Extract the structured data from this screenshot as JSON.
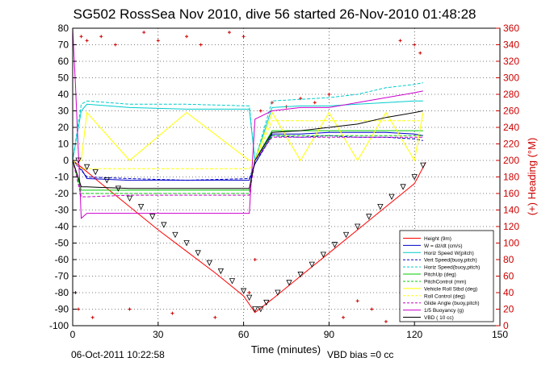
{
  "chart_data": {
    "type": "line",
    "title": "SG502 RossSea Nov 2010, dive 56 started 26-Nov-2010 01:48:28",
    "xlabel": "Time (minutes)",
    "ylabel_right": "(+) Heading (°M)",
    "xlim": [
      0,
      150
    ],
    "ylim": [
      -100,
      80
    ],
    "ylim_right": [
      0,
      360
    ],
    "xticks": [
      "0",
      "30",
      "60",
      "90",
      "120",
      "150"
    ],
    "yticks": [
      "-100",
      "-90",
      "-80",
      "-70",
      "-60",
      "-50",
      "-40",
      "-30",
      "-20",
      "-10",
      "0",
      "10",
      "20",
      "30",
      "40",
      "50",
      "60",
      "70",
      "80"
    ],
    "yticks_right": [
      "0",
      "20",
      "40",
      "60",
      "80",
      "100",
      "120",
      "140",
      "160",
      "180",
      "200",
      "220",
      "240",
      "260",
      "280",
      "300",
      "320",
      "340",
      "360"
    ],
    "grid": true,
    "legend_position": "bottom-right",
    "series": [
      {
        "name": "Height (9m)",
        "color": "#ff0000",
        "style": "solid",
        "x": [
          0,
          3,
          10,
          20,
          30,
          40,
          50,
          60,
          64,
          70,
          80,
          90,
          100,
          110,
          120,
          124
        ],
        "y": [
          0,
          -4,
          -14,
          -28,
          -42,
          -55,
          -68,
          -82,
          -92,
          -84,
          -70,
          -56,
          -42,
          -28,
          -14,
          -1
        ]
      },
      {
        "name": "W = dz/dt (cm/s)",
        "color": "#0000cc",
        "style": "solid",
        "x": [
          0,
          3,
          5,
          20,
          40,
          62,
          64,
          70,
          80,
          90,
          100,
          110,
          120,
          123
        ],
        "y": [
          0,
          -5,
          -11,
          -12,
          -12,
          -12,
          -2,
          16,
          16,
          17,
          17,
          17,
          16,
          15
        ]
      },
      {
        "name": "Horiz Speed W(pitch)",
        "color": "#00cccc",
        "style": "solid",
        "x": [
          0,
          3,
          5,
          20,
          40,
          62,
          64,
          70,
          80,
          90,
          100,
          110,
          120,
          123
        ],
        "y": [
          0,
          30,
          34,
          32,
          31,
          31,
          0,
          32,
          33,
          33,
          34,
          35,
          36,
          36
        ]
      },
      {
        "name": "Vert Speed(buoy,pitch)",
        "color": "#0000cc",
        "style": "dashed",
        "x": [
          0,
          3,
          5,
          20,
          40,
          62,
          64,
          70,
          80,
          90,
          100,
          110,
          120,
          123
        ],
        "y": [
          0,
          -6,
          -10,
          -11,
          -12,
          -11,
          -2,
          15,
          14,
          15,
          14,
          14,
          13,
          12
        ]
      },
      {
        "name": "Horiz Speed(buoy,pitch)",
        "color": "#00cccc",
        "style": "dashed",
        "x": [
          0,
          3,
          5,
          20,
          40,
          62,
          64,
          70,
          80,
          90,
          100,
          110,
          120,
          123
        ],
        "y": [
          0,
          34,
          36,
          34,
          34,
          33,
          0,
          36,
          37,
          38,
          40,
          44,
          46,
          47
        ]
      },
      {
        "name": "PitchUp (deg)",
        "color": "#00cc00",
        "style": "solid",
        "x": [
          0,
          3,
          5,
          20,
          40,
          62,
          64,
          70,
          80,
          90,
          100,
          110,
          120,
          123
        ],
        "y": [
          0,
          -18,
          -18,
          -18,
          -18,
          -18,
          0,
          18,
          18,
          18,
          18,
          18,
          18,
          18
        ]
      },
      {
        "name": "PitchControl (mm)",
        "color": "#00cc00",
        "style": "dashed",
        "x": [
          0,
          3,
          5,
          20,
          40,
          62,
          64,
          70,
          80,
          90,
          100,
          110,
          120,
          123
        ],
        "y": [
          0,
          -20,
          -20,
          -20,
          -20,
          -20,
          0,
          15,
          15,
          15,
          15,
          15,
          15,
          15
        ]
      },
      {
        "name": "Vehicle Roll Stbd (deg)",
        "color": "#ffff00",
        "style": "solid",
        "x": [
          0,
          3,
          5,
          20,
          40,
          62,
          64,
          70,
          80,
          90,
          100,
          110,
          120,
          123
        ],
        "y": [
          0,
          0,
          29,
          0,
          29,
          0,
          0,
          29,
          0,
          29,
          0,
          29,
          0,
          29
        ]
      },
      {
        "name": "Roll Control (deg)",
        "color": "#ffff00",
        "style": "dashed",
        "x": [
          0,
          3,
          5,
          20,
          40,
          62,
          64,
          70,
          80,
          90,
          100,
          110,
          120,
          123
        ],
        "y": [
          0,
          -5,
          -5,
          -5,
          -5,
          -5,
          0,
          24,
          24,
          24,
          24,
          24,
          24,
          24
        ]
      },
      {
        "name": "Glide Angle (buoy,pitch)",
        "color": "#cc00cc",
        "style": "dashed",
        "x": [
          0,
          3,
          5,
          20,
          40,
          62,
          64,
          70,
          80,
          90,
          100,
          110,
          120,
          123
        ],
        "y": [
          0,
          -22,
          -22,
          -21,
          -21,
          -21,
          0,
          14,
          14,
          14,
          14,
          14,
          14,
          14
        ]
      },
      {
        "name": "1/5 Buoyancy (g)",
        "color": "#cc00cc",
        "style": "solid",
        "x": [
          0,
          1,
          3,
          5,
          20,
          40,
          62,
          64,
          70,
          80,
          90,
          100,
          110,
          120,
          123
        ],
        "y": [
          80,
          45,
          -35,
          -32,
          -32,
          -32,
          -32,
          25,
          30,
          32,
          32,
          35,
          38,
          41,
          42
        ]
      },
      {
        "name": "VBD ( 10 cc)",
        "color": "#000000",
        "style": "solid",
        "x": [
          0,
          3,
          5,
          20,
          40,
          62,
          64,
          70,
          80,
          90,
          100,
          110,
          120,
          123
        ],
        "y": [
          0,
          -16,
          -16,
          -17,
          -17,
          -17,
          0,
          17,
          18,
          20,
          22,
          26,
          29,
          30
        ]
      }
    ],
    "depth_markers": {
      "color": "#000000",
      "x": [
        2,
        5,
        8,
        12,
        16,
        20,
        24,
        28,
        32,
        36,
        40,
        44,
        48,
        52,
        56,
        60,
        62,
        64,
        66,
        68,
        72,
        76,
        80,
        84,
        88,
        92,
        96,
        100,
        104,
        108,
        112,
        116,
        120,
        123
      ],
      "y": [
        0,
        -4,
        -7,
        -12,
        -17,
        -23,
        -28,
        -34,
        -39,
        -45,
        -50,
        -56,
        -62,
        -67,
        -73,
        -79,
        -83,
        -90,
        -90,
        -86,
        -80,
        -74,
        -69,
        -63,
        -57,
        -51,
        -45,
        -40,
        -34,
        -28,
        -22,
        -16,
        -10,
        -3
      ]
    },
    "heading_points": {
      "color": "#cc0000",
      "axis": "right",
      "x": [
        1,
        2,
        3,
        5,
        7,
        10,
        15,
        20,
        25,
        30,
        35,
        40,
        45,
        50,
        55,
        60,
        62,
        64,
        66,
        70,
        75,
        80,
        85,
        90,
        95,
        100,
        105,
        110,
        115,
        120,
        122
      ],
      "y": [
        40,
        20,
        350,
        345,
        10,
        350,
        340,
        20,
        355,
        345,
        15,
        350,
        340,
        10,
        355,
        350,
        40,
        80,
        260,
        270,
        265,
        275,
        270,
        280,
        10,
        30,
        20,
        5,
        345,
        340,
        330
      ]
    }
  },
  "footer": {
    "timestamp": "06-Oct-2011 10:22:58",
    "vbd_bias": "VBD bias =0 cc"
  }
}
